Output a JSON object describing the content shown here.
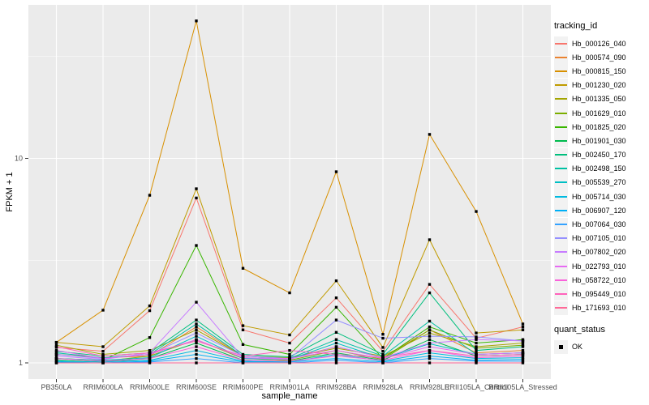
{
  "chart_data": {
    "type": "line",
    "title": "",
    "xlabel": "sample_name",
    "ylabel": "FPKM + 1",
    "y_scale": "log10",
    "ylim": [
      0.83,
      56
    ],
    "grid": "on",
    "panel_bg": "#EBEBEB",
    "grid_color": "#FFFFFF",
    "axis_text_color": "#4D4D4D",
    "tick_color": "#333333",
    "y_ticks": [
      1,
      10
    ],
    "y_minor_ticks": [
      3.162,
      31.62
    ],
    "marker": {
      "shape": "square",
      "color": "#000000"
    },
    "legend_title": "tracking_id",
    "legend_position": "right",
    "quant_legend": {
      "title": "quant_status",
      "items": [
        {
          "label": "OK",
          "swatch": "black-square"
        }
      ]
    },
    "x_categories": [
      "PB350LA",
      "RRIM600LA",
      "RRIM600LE",
      "RRIM600SE",
      "RRIM600PE",
      "RRIM901LA",
      "RRIM928BA",
      "RRIM928LA",
      "RRIM928LE",
      "RRII105LA_Control",
      "RRII105LA_Stressed"
    ],
    "series": [
      {
        "name": "Hb_000126_040",
        "color": "#F8766D",
        "values": [
          1.19,
          1.14,
          1.8,
          6.4,
          1.45,
          1.25,
          2.08,
          1.14,
          2.42,
          1.32,
          1.5
        ]
      },
      {
        "name": "Hb_000574_090",
        "color": "#EA8331",
        "values": [
          1.1,
          1.06,
          1.08,
          1.5,
          1.08,
          1.05,
          1.2,
          1.06,
          1.45,
          1.12,
          1.15
        ]
      },
      {
        "name": "Hb_000815_150",
        "color": "#D89000",
        "values": [
          1.26,
          1.81,
          6.6,
          47.0,
          2.9,
          2.2,
          8.6,
          1.38,
          13.1,
          5.5,
          1.55
        ]
      },
      {
        "name": "Hb_001230_020",
        "color": "#C09B00",
        "values": [
          1.26,
          1.2,
          1.9,
          7.1,
          1.52,
          1.37,
          2.52,
          1.19,
          4.0,
          1.4,
          1.45
        ]
      },
      {
        "name": "Hb_001335_050",
        "color": "#A3A500",
        "values": [
          1.22,
          1.1,
          1.15,
          1.45,
          1.08,
          1.06,
          1.18,
          1.08,
          1.4,
          1.2,
          1.25
        ]
      },
      {
        "name": "Hb_001629_010",
        "color": "#7CAE00",
        "values": [
          1.05,
          1.02,
          1.08,
          1.3,
          1.05,
          1.03,
          1.15,
          1.04,
          1.45,
          1.18,
          1.22
        ]
      },
      {
        "name": "Hb_001825_020",
        "color": "#39B600",
        "values": [
          1.05,
          1.03,
          1.33,
          3.75,
          1.23,
          1.1,
          1.87,
          1.05,
          1.5,
          1.25,
          1.3
        ]
      },
      {
        "name": "Hb_001901_030",
        "color": "#00BB4E",
        "values": [
          1.03,
          1.01,
          1.05,
          1.25,
          1.03,
          1.02,
          1.12,
          1.03,
          1.3,
          1.08,
          1.1
        ]
      },
      {
        "name": "Hb_002450_170",
        "color": "#00BF7D",
        "values": [
          1.14,
          1.08,
          1.12,
          1.62,
          1.1,
          1.07,
          1.41,
          1.1,
          2.2,
          1.15,
          1.2
        ]
      },
      {
        "name": "Hb_002498_150",
        "color": "#00C1A3",
        "values": [
          1.12,
          1.06,
          1.1,
          1.55,
          1.08,
          1.05,
          1.3,
          1.08,
          1.6,
          1.1,
          1.12
        ]
      },
      {
        "name": "Hb_005539_270",
        "color": "#00BFC4",
        "values": [
          1.05,
          1.03,
          1.06,
          1.35,
          1.05,
          1.04,
          1.25,
          1.05,
          1.24,
          1.1,
          1.12
        ]
      },
      {
        "name": "Hb_005714_030",
        "color": "#00BAE0",
        "values": [
          1.02,
          1.01,
          1.03,
          1.15,
          1.02,
          1.01,
          1.1,
          1.02,
          1.12,
          1.05,
          1.06
        ]
      },
      {
        "name": "Hb_006907_120",
        "color": "#00B0F6",
        "values": [
          1.01,
          1.0,
          1.02,
          1.1,
          1.01,
          1.01,
          1.05,
          1.01,
          1.08,
          1.03,
          1.04
        ]
      },
      {
        "name": "Hb_007064_030",
        "color": "#35A2FF",
        "values": [
          1.0,
          1.0,
          1.01,
          1.05,
          1.0,
          1.0,
          1.03,
          1.0,
          1.05,
          1.02,
          1.02
        ]
      },
      {
        "name": "Hb_007105_010",
        "color": "#9590FF",
        "values": [
          1.1,
          1.05,
          1.1,
          1.4,
          1.08,
          1.05,
          1.62,
          1.32,
          1.35,
          1.34,
          1.28
        ]
      },
      {
        "name": "Hb_007802_020",
        "color": "#C77CFF",
        "values": [
          1.08,
          1.04,
          1.12,
          1.98,
          1.06,
          1.04,
          1.2,
          1.06,
          1.25,
          1.3,
          1.28
        ]
      },
      {
        "name": "Hb_022793_010",
        "color": "#E76BF3",
        "values": [
          1.15,
          1.05,
          1.1,
          1.3,
          1.06,
          1.05,
          1.15,
          1.05,
          1.2,
          1.1,
          1.12
        ]
      },
      {
        "name": "Hb_058722_010",
        "color": "#FA62DB",
        "values": [
          1.05,
          1.02,
          1.05,
          1.2,
          1.03,
          1.02,
          1.08,
          1.03,
          1.15,
          1.06,
          1.08
        ]
      },
      {
        "name": "Hb_095449_010",
        "color": "#FF62BC",
        "values": [
          1.2,
          1.08,
          1.12,
          1.28,
          1.08,
          1.15,
          1.1,
          1.06,
          1.15,
          1.08,
          1.1
        ]
      },
      {
        "name": "Hb_171693_010",
        "color": "#FF6A98",
        "values": [
          1.0,
          1.0,
          1.0,
          1.0,
          1.0,
          1.0,
          1.0,
          1.0,
          1.0,
          1.0,
          1.0
        ]
      }
    ]
  }
}
